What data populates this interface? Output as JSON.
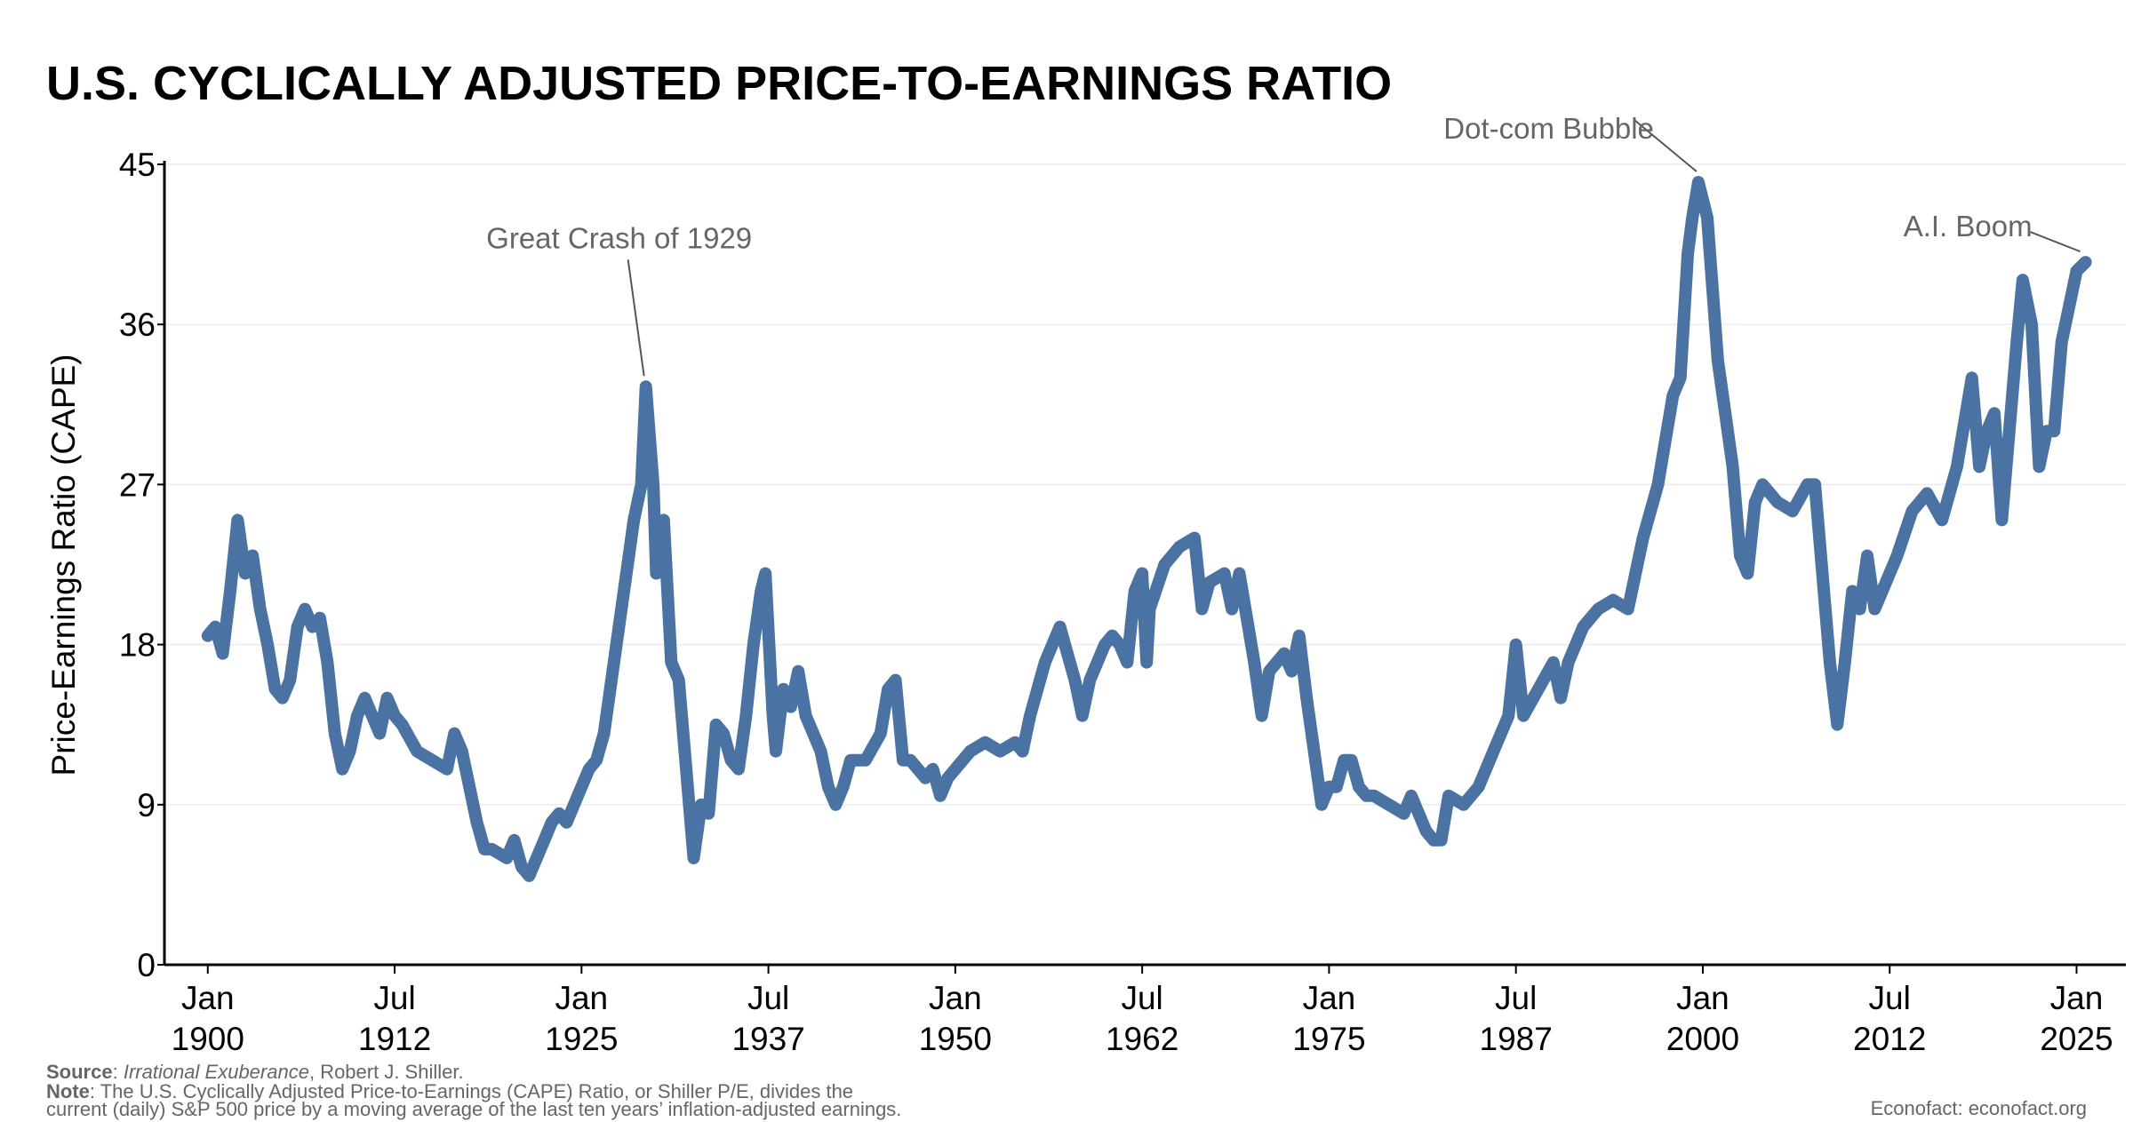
{
  "chart_data": {
    "type": "line",
    "title": "U.S. CYCLICALLY ADJUSTED PRICE-TO-EARNINGS RATIO",
    "ylabel": "Price-Earnings Ratio (CAPE)",
    "xlim": [
      1897.1,
      2028.3
    ],
    "ylim": [
      0,
      45
    ],
    "yticks": [
      0,
      9,
      18,
      27,
      36,
      45
    ],
    "xticks": [
      {
        "value": 1900,
        "label": "Jan 1900"
      },
      {
        "value": 1912.5,
        "label": "Jul 1912"
      },
      {
        "value": 1925,
        "label": "Jan 1925"
      },
      {
        "value": 1937.5,
        "label": "Jul 1937"
      },
      {
        "value": 1950,
        "label": "Jan 1950"
      },
      {
        "value": 1962.5,
        "label": "Jul 1962"
      },
      {
        "value": 1975,
        "label": "Jan 1975"
      },
      {
        "value": 1987.5,
        "label": "Jul 1987"
      },
      {
        "value": 2000,
        "label": "Jan 2000"
      },
      {
        "value": 2012.5,
        "label": "Jul 2012"
      },
      {
        "value": 2025,
        "label": "Jan 2025"
      }
    ],
    "grid": true,
    "series": [
      {
        "name": "CAPE",
        "color": "#4a72a2",
        "x": [
          1900,
          1900.5,
          1901,
          1901.5,
          1902,
          1902.5,
          1903,
          1903.5,
          1904,
          1904.5,
          1905,
          1905.5,
          1906,
          1906.5,
          1907,
          1907.5,
          1908,
          1908.5,
          1909,
          1909.5,
          1910,
          1910.5,
          1911,
          1911.5,
          1912,
          1912.5,
          1913,
          1914,
          1915,
          1916,
          1916.5,
          1917,
          1918,
          1918.5,
          1919,
          1920,
          1920.5,
          1921,
          1921.5,
          1922,
          1923,
          1923.5,
          1924,
          1924.5,
          1925,
          1925.5,
          1926,
          1926.5,
          1927,
          1927.5,
          1928,
          1928.5,
          1929,
          1929.3,
          1929.8,
          1930,
          1930.5,
          1931,
          1931.5,
          1932,
          1932.5,
          1933,
          1933.5,
          1934,
          1934.5,
          1935,
          1935.5,
          1936,
          1936.5,
          1937,
          1937.3,
          1937.8,
          1938,
          1938.5,
          1939,
          1939.5,
          1940,
          1940.5,
          1941,
          1941.5,
          1942,
          1942.5,
          1943,
          1944,
          1945,
          1945.5,
          1946,
          1946.5,
          1947,
          1948,
          1948.5,
          1949,
          1949.5,
          1950,
          1951,
          1952,
          1953,
          1954,
          1954.5,
          1955,
          1956,
          1957,
          1957.5,
          1958,
          1958.5,
          1959,
          1960,
          1960.5,
          1961,
          1961.5,
          1962,
          1962.5,
          1962.8,
          1963,
          1964,
          1965,
          1966,
          1966.5,
          1967,
          1968,
          1968.5,
          1969,
          1970,
          1970.5,
          1971,
          1972,
          1972.5,
          1973,
          1973.5,
          1974,
          1974.5,
          1975,
          1975.5,
          1976,
          1976.5,
          1977,
          1977.5,
          1978,
          1979,
          1980,
          1980.5,
          1981,
          1981.5,
          1982,
          1982.5,
          1983,
          1984,
          1985,
          1986,
          1987,
          1987.5,
          1988,
          1989,
          1990,
          1990.5,
          1991,
          1992,
          1993,
          1994,
          1995,
          1996,
          1997,
          1998,
          1998.5,
          1999,
          1999.3,
          1999.7,
          2000.3,
          2001,
          2002,
          2002.5,
          2003,
          2003.5,
          2004,
          2005,
          2006,
          2007,
          2007.5,
          2008,
          2008.5,
          2009,
          2009.5,
          2010,
          2010.5,
          2011,
          2011.5,
          2012,
          2013,
          2014,
          2015,
          2016,
          2017,
          2018,
          2018.5,
          2019,
          2019.5,
          2020,
          2020.5,
          2021,
          2021.4,
          2022,
          2022.5,
          2023,
          2023.5,
          2024,
          2024.5,
          2025,
          2025.6
        ],
        "values": [
          18.5,
          19,
          17.5,
          21,
          25,
          22,
          23,
          20,
          18,
          15.5,
          15,
          16,
          19,
          20,
          19,
          19.5,
          17,
          13,
          11,
          12,
          14,
          15,
          14,
          13,
          15,
          14,
          13.5,
          12,
          11.5,
          11,
          13,
          12,
          8,
          6.5,
          6.5,
          6,
          7,
          5.5,
          5,
          6,
          8,
          8.5,
          8,
          9,
          10,
          11,
          11.5,
          13,
          16,
          19,
          22,
          25,
          27,
          32.5,
          27,
          22,
          25,
          17,
          16,
          11,
          6,
          9,
          8.5,
          13.5,
          13,
          11.5,
          11,
          14,
          18,
          21,
          22,
          14,
          12,
          15.5,
          14.5,
          16.5,
          14,
          13,
          12,
          10,
          9,
          10,
          11.5,
          11.5,
          13,
          15.5,
          16,
          11.5,
          11.5,
          10.5,
          11,
          9.5,
          10.5,
          11,
          12,
          12.5,
          12,
          12.5,
          12,
          14,
          17,
          19,
          17.5,
          16,
          14,
          16,
          18,
          18.5,
          18,
          17,
          21,
          22,
          17,
          20,
          22.5,
          23.5,
          24,
          20,
          21.5,
          22,
          20,
          22,
          17,
          14,
          16.5,
          17.5,
          16.5,
          18.5,
          15,
          12,
          9,
          10,
          10,
          11.5,
          11.5,
          10,
          9.5,
          9.5,
          9,
          8.5,
          9.5,
          8.5,
          7.5,
          7,
          7,
          9.5,
          9,
          10,
          12,
          14,
          18,
          14,
          15.5,
          17,
          15,
          17,
          19,
          20,
          20.5,
          20,
          24,
          27,
          32,
          33,
          40,
          42,
          44,
          42,
          34,
          28,
          23,
          22,
          26,
          27,
          26,
          25.5,
          27,
          27,
          22,
          17,
          13.5,
          17,
          21,
          20,
          23,
          20,
          21,
          23,
          25.5,
          26.5,
          25,
          28,
          33,
          28,
          30,
          31,
          25,
          30,
          35,
          38.5,
          36,
          28,
          30,
          30,
          35,
          37,
          39,
          39.5
        ]
      }
    ],
    "annotations": [
      {
        "text": "Great Crash of 1929",
        "x": 1929.3,
        "y": 32.5
      },
      {
        "text": "Dot-com Bubble",
        "x": 1999.7,
        "y": 44
      },
      {
        "text": "A.I. Boom",
        "x": 2025.6,
        "y": 39.5
      }
    ],
    "source": [
      {
        "text": "Source",
        "bold": true
      },
      {
        "text": ": "
      },
      {
        "text": "Irrational Exuberance",
        "italic": true
      },
      {
        "text": ", Robert J. Shiller."
      }
    ],
    "note": [
      {
        "text": "Note",
        "bold": true
      },
      {
        "text": ": The U.S. Cyclically Adjusted Price-to-Earnings (CAPE) Ratio, or Shiller P/E, divides the"
      }
    ],
    "note_line2": "current (daily) S&P 500 price by a moving average of the last ten years’ inflation-adjusted earnings.",
    "credit": "Econofact: econofact.org"
  }
}
